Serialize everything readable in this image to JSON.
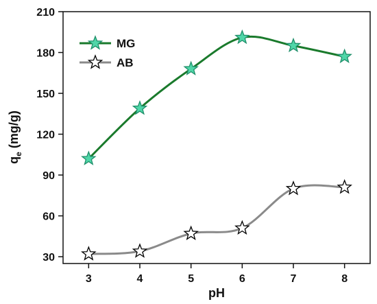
{
  "chart_data": {
    "type": "line",
    "xlabel": "pH",
    "ylabel_main": "q",
    "ylabel_sub": "e",
    "ylabel_tail": " (mg/g)",
    "x": [
      3,
      4,
      5,
      6,
      7,
      8
    ],
    "xlim": [
      2.5,
      8.5
    ],
    "ylim": [
      25,
      210
    ],
    "xticks": [
      3,
      4,
      5,
      6,
      7,
      8
    ],
    "yticks": [
      30,
      60,
      90,
      120,
      150,
      180,
      210
    ],
    "grid": false,
    "legend_position": "top-left",
    "series": [
      {
        "name": "MG",
        "values": [
          102,
          139,
          168,
          191,
          185,
          177
        ],
        "line_color": "#1a7a2c",
        "marker_fill": "#4fd6a8",
        "marker_stroke": "#1f8f6a"
      },
      {
        "name": "AB",
        "values": [
          32,
          34,
          47,
          51,
          80,
          81
        ],
        "line_color": "#8a8a8a",
        "marker_fill": "#ffffff",
        "marker_stroke": "#000000"
      }
    ]
  }
}
